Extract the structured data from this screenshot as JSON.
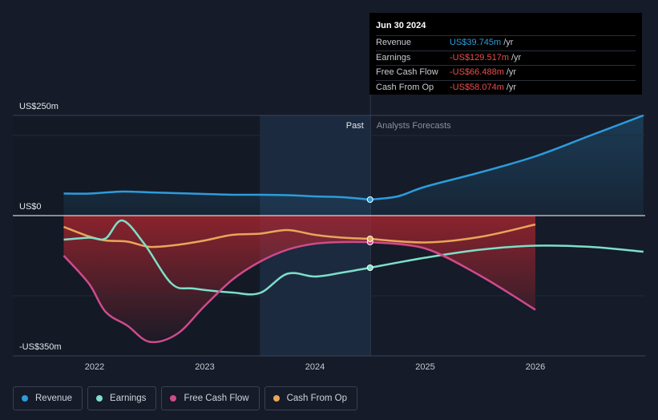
{
  "tooltip": {
    "date": "Jun 30 2024",
    "rows": [
      {
        "label": "Revenue",
        "value": "US$39.745m",
        "unit": "/yr",
        "color": "#2d9cdb"
      },
      {
        "label": "Earnings",
        "value": "-US$129.517m",
        "unit": "/yr",
        "color": "#f04b4b"
      },
      {
        "label": "Free Cash Flow",
        "value": "-US$66.488m",
        "unit": "/yr",
        "color": "#f04b4b"
      },
      {
        "label": "Cash From Op",
        "value": "-US$58.074m",
        "unit": "/yr",
        "color": "#f04b4b"
      }
    ]
  },
  "legend": [
    {
      "label": "Revenue",
      "color": "#2d9cdb"
    },
    {
      "label": "Earnings",
      "color": "#7ddfc9"
    },
    {
      "label": "Free Cash Flow",
      "color": "#d04a8c"
    },
    {
      "label": "Cash From Op",
      "color": "#e8a65a"
    }
  ],
  "chart_data": {
    "type": "line",
    "y_axis_labels": [
      "US$250m",
      "US$0",
      "-US$350m"
    ],
    "ylim": [
      -350,
      250
    ],
    "xlim": [
      2021.5,
      2026.98
    ],
    "x_ticks": [
      2022,
      2023,
      2024,
      2025,
      2026
    ],
    "past_label": "Past",
    "forecast_label": "Analysts Forecasts",
    "forecast_start": 2024.5,
    "highlight_start": 2023.5,
    "series": [
      {
        "name": "Revenue",
        "color": "#2d9cdb",
        "points": [
          [
            2021.72,
            55
          ],
          [
            2021.95,
            55
          ],
          [
            2022.25,
            60
          ],
          [
            2022.5,
            58
          ],
          [
            2022.75,
            56
          ],
          [
            2023.0,
            54
          ],
          [
            2023.25,
            52
          ],
          [
            2023.5,
            52
          ],
          [
            2023.75,
            51
          ],
          [
            2024.0,
            48
          ],
          [
            2024.25,
            46
          ],
          [
            2024.5,
            40
          ]
        ],
        "forecast": [
          [
            2024.5,
            40
          ],
          [
            2024.75,
            48
          ],
          [
            2025.0,
            72
          ],
          [
            2025.5,
            108
          ],
          [
            2026.0,
            148
          ],
          [
            2026.5,
            200
          ],
          [
            2026.98,
            250
          ]
        ]
      },
      {
        "name": "Earnings",
        "color": "#7ddfc9",
        "points": [
          [
            2021.72,
            -60
          ],
          [
            2021.95,
            -55
          ],
          [
            2022.1,
            -57
          ],
          [
            2022.25,
            -12
          ],
          [
            2022.45,
            -70
          ],
          [
            2022.7,
            -170
          ],
          [
            2022.9,
            -182
          ],
          [
            2023.25,
            -192
          ],
          [
            2023.5,
            -193
          ],
          [
            2023.75,
            -145
          ],
          [
            2024.0,
            -152
          ],
          [
            2024.25,
            -142
          ],
          [
            2024.5,
            -130
          ]
        ],
        "forecast": [
          [
            2024.5,
            -130
          ],
          [
            2025.0,
            -105
          ],
          [
            2025.5,
            -85
          ],
          [
            2026.0,
            -75
          ],
          [
            2026.5,
            -78
          ],
          [
            2026.98,
            -90
          ]
        ]
      },
      {
        "name": "Free Cash Flow",
        "color": "#d04a8c",
        "points": [
          [
            2021.72,
            -100
          ],
          [
            2021.95,
            -170
          ],
          [
            2022.1,
            -240
          ],
          [
            2022.3,
            -275
          ],
          [
            2022.5,
            -315
          ],
          [
            2022.75,
            -295
          ],
          [
            2023.0,
            -225
          ],
          [
            2023.25,
            -160
          ],
          [
            2023.5,
            -115
          ],
          [
            2023.75,
            -85
          ],
          [
            2024.0,
            -70
          ],
          [
            2024.25,
            -66
          ],
          [
            2024.5,
            -66
          ]
        ],
        "forecast": [
          [
            2024.5,
            -66
          ],
          [
            2025.0,
            -82
          ],
          [
            2025.5,
            -150
          ],
          [
            2026.0,
            -235
          ]
        ]
      },
      {
        "name": "Cash From Op",
        "color": "#e8a65a",
        "points": [
          [
            2021.72,
            -28
          ],
          [
            2021.95,
            -52
          ],
          [
            2022.1,
            -62
          ],
          [
            2022.3,
            -65
          ],
          [
            2022.5,
            -78
          ],
          [
            2022.75,
            -73
          ],
          [
            2023.0,
            -62
          ],
          [
            2023.25,
            -48
          ],
          [
            2023.5,
            -45
          ],
          [
            2023.75,
            -36
          ],
          [
            2024.0,
            -48
          ],
          [
            2024.25,
            -55
          ],
          [
            2024.5,
            -58
          ]
        ],
        "forecast": [
          [
            2024.5,
            -58
          ],
          [
            2025.0,
            -67
          ],
          [
            2025.5,
            -53
          ],
          [
            2026.0,
            -22
          ]
        ]
      }
    ]
  }
}
